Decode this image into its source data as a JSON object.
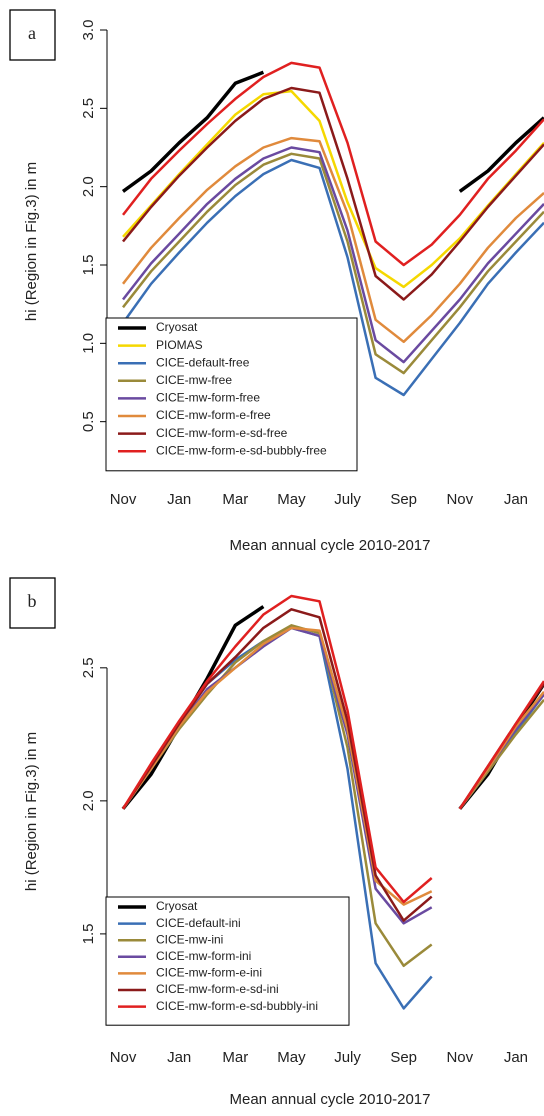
{
  "chart_data": [
    {
      "type": "line",
      "panel_label": "a",
      "ylabel": "hi (Region in Fig.3) in m",
      "xlabel": "Mean annual cycle 2010-2017",
      "x": [
        0,
        1,
        2,
        3,
        4,
        5,
        6,
        7,
        8,
        9,
        10,
        11,
        12,
        13,
        14,
        15
      ],
      "xlim": [
        -0.5,
        15
      ],
      "ylim": [
        0.3,
        3.0
      ],
      "xticks": [
        {
          "value": 0,
          "label": "Nov"
        },
        {
          "value": 2,
          "label": "Jan"
        },
        {
          "value": 4,
          "label": "Mar"
        },
        {
          "value": 6,
          "label": "May"
        },
        {
          "value": 8,
          "label": "July"
        },
        {
          "value": 10,
          "label": "Sep"
        },
        {
          "value": 12,
          "label": "Nov"
        },
        {
          "value": 14,
          "label": "Jan"
        }
      ],
      "yticks": [
        0.5,
        {
          "value": 1,
          "label": "1.0"
        },
        1.5,
        {
          "value": 2,
          "label": "2.0"
        },
        2.5,
        {
          "value": 3,
          "label": "3.0"
        }
      ],
      "legend": "bottom-left",
      "series": [
        {
          "name": "Cryosat",
          "color": "#000000",
          "values": [
            1.97,
            2.1,
            2.28,
            2.44,
            2.66,
            2.73,
            null,
            null,
            null,
            null,
            null,
            null,
            1.97,
            2.1,
            2.28,
            2.44
          ]
        },
        {
          "name": "PIOMAS",
          "color": "#f5d800",
          "values": [
            1.68,
            1.88,
            2.08,
            2.27,
            2.46,
            2.59,
            2.61,
            2.42,
            1.9,
            1.48,
            1.36,
            1.5,
            1.67,
            1.88,
            2.08,
            2.28
          ]
        },
        {
          "name": "CICE-default-free",
          "color": "#3a6fb5",
          "values": [
            1.13,
            1.38,
            1.58,
            1.77,
            1.94,
            2.08,
            2.17,
            2.12,
            1.55,
            0.78,
            0.67,
            0.9,
            1.13,
            1.38,
            1.58,
            1.77
          ]
        },
        {
          "name": "CICE-mw-free",
          "color": "#9a8a3a",
          "values": [
            1.23,
            1.46,
            1.65,
            1.84,
            2.01,
            2.14,
            2.21,
            2.18,
            1.65,
            0.93,
            0.81,
            1.02,
            1.23,
            1.46,
            1.65,
            1.84
          ]
        },
        {
          "name": "CICE-mw-form-free",
          "color": "#6a4aa0",
          "values": [
            1.28,
            1.51,
            1.7,
            1.89,
            2.05,
            2.18,
            2.25,
            2.22,
            1.72,
            1.02,
            0.88,
            1.08,
            1.28,
            1.51,
            1.7,
            1.89
          ]
        },
        {
          "name": "CICE-mw-form-e-free",
          "color": "#e08a3c",
          "values": [
            1.38,
            1.61,
            1.8,
            1.98,
            2.13,
            2.25,
            2.31,
            2.29,
            1.83,
            1.15,
            1.01,
            1.18,
            1.38,
            1.61,
            1.8,
            1.96
          ]
        },
        {
          "name": "CICE-mw-form-e-sd-free",
          "color": "#8b1a1a",
          "values": [
            1.65,
            1.87,
            2.07,
            2.25,
            2.42,
            2.56,
            2.63,
            2.6,
            2.05,
            1.43,
            1.28,
            1.44,
            1.65,
            1.87,
            2.07,
            2.27
          ]
        },
        {
          "name": "CICE-mw-form-e-sd-bubbly-free",
          "color": "#e02020",
          "values": [
            1.82,
            2.05,
            2.23,
            2.4,
            2.56,
            2.7,
            2.79,
            2.76,
            2.28,
            1.65,
            1.5,
            1.63,
            1.82,
            2.05,
            2.23,
            2.43
          ]
        }
      ]
    },
    {
      "type": "line",
      "panel_label": "b",
      "ylabel": "hi (Region in Fig.3) in m",
      "xlabel": "Mean annual cycle 2010-2017",
      "x": [
        0,
        1,
        2,
        3,
        4,
        5,
        6,
        7,
        8,
        9,
        10,
        11,
        null,
        12,
        13,
        14,
        15
      ],
      "xlim": [
        -0.5,
        15
      ],
      "ylim": [
        1.12,
        2.8
      ],
      "xticks": [
        {
          "value": 0,
          "label": "Nov"
        },
        {
          "value": 2,
          "label": "Jan"
        },
        {
          "value": 4,
          "label": "Mar"
        },
        {
          "value": 6,
          "label": "May"
        },
        {
          "value": 8,
          "label": "July"
        },
        {
          "value": 10,
          "label": "Sep"
        },
        {
          "value": 12,
          "label": "Nov"
        },
        {
          "value": 14,
          "label": "Jan"
        }
      ],
      "yticks": [
        1.5,
        {
          "value": 2,
          "label": "2.0"
        },
        2.5
      ],
      "legend": "bottom-left",
      "series": [
        {
          "name": "Cryosat",
          "color": "#000000",
          "values": [
            1.97,
            2.1,
            2.28,
            2.46,
            2.66,
            2.73,
            null,
            null,
            null,
            null,
            null,
            null,
            null,
            1.97,
            2.1,
            2.28,
            2.44
          ]
        },
        {
          "name": "CICE-default-ini",
          "color": "#3a6fb5",
          "values": [
            1.97,
            2.12,
            2.29,
            2.44,
            2.53,
            2.6,
            2.65,
            2.62,
            2.12,
            1.39,
            1.22,
            1.34,
            null,
            1.97,
            2.11,
            2.26,
            2.4
          ]
        },
        {
          "name": "CICE-mw-ini",
          "color": "#9a8a3a",
          "values": [
            1.97,
            2.12,
            2.27,
            2.4,
            2.52,
            2.6,
            2.66,
            2.63,
            2.2,
            1.54,
            1.38,
            1.46,
            null,
            1.97,
            2.11,
            2.25,
            2.38
          ]
        },
        {
          "name": "CICE-mw-form-ini",
          "color": "#6a4aa0",
          "values": [
            1.97,
            2.12,
            2.28,
            2.42,
            2.5,
            2.58,
            2.65,
            2.62,
            2.25,
            1.67,
            1.54,
            1.6,
            null,
            1.97,
            2.12,
            2.27,
            2.4
          ]
        },
        {
          "name": "CICE-mw-form-e-ini",
          "color": "#e08a3c",
          "values": [
            1.97,
            2.12,
            2.28,
            2.41,
            2.5,
            2.59,
            2.65,
            2.64,
            2.27,
            1.7,
            1.61,
            1.66,
            null,
            1.97,
            2.12,
            2.28,
            2.41
          ]
        },
        {
          "name": "CICE-mw-form-e-sd-ini",
          "color": "#8b1a1a",
          "values": [
            1.97,
            2.13,
            2.29,
            2.44,
            2.54,
            2.65,
            2.72,
            2.69,
            2.3,
            1.72,
            1.55,
            1.64,
            null,
            1.97,
            2.13,
            2.29,
            2.44
          ]
        },
        {
          "name": "CICE-mw-form-e-sd-bubbly-ini",
          "color": "#e02020",
          "values": [
            1.97,
            2.14,
            2.3,
            2.45,
            2.58,
            2.7,
            2.77,
            2.75,
            2.34,
            1.75,
            1.62,
            1.71,
            null,
            1.97,
            2.13,
            2.29,
            2.45
          ]
        }
      ]
    }
  ]
}
